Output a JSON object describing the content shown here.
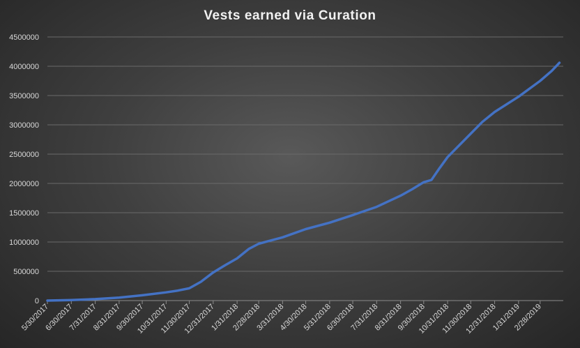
{
  "chart_data": {
    "type": "line",
    "title": "Vests earned via Curation",
    "xlabel": "",
    "ylabel": "",
    "ylim": [
      0,
      4500000
    ],
    "y_ticks": [
      0,
      500000,
      1000000,
      1500000,
      2000000,
      2500000,
      3000000,
      3500000,
      4000000,
      4500000
    ],
    "y_tick_labels": [
      "0",
      "500000",
      "1000000",
      "1500000",
      "2000000",
      "2500000",
      "3000000",
      "3500000",
      "4000000",
      "4500000"
    ],
    "x_tick_labels": [
      "5/30/2017",
      "6/30/2017",
      "7/31/2017",
      "8/31/2017",
      "9/30/2017",
      "10/31/2017",
      "11/30/2017",
      "12/31/2017",
      "1/31/2018",
      "2/28/2018",
      "3/31/2018",
      "4/30/2018",
      "5/31/2018",
      "6/30/2018",
      "7/31/2018",
      "8/31/2018",
      "9/30/2018",
      "10/31/2018",
      "11/30/2018",
      "12/31/2018",
      "1/31/2019",
      "2/28/2019"
    ],
    "grid": true,
    "legend": "none",
    "line_color": "#4472c4",
    "series": [
      {
        "x": [
          "5/30/2017",
          "6/30/2017",
          "7/31/2017",
          "8/31/2017",
          "9/30/2017",
          "10/31/2017",
          "11/15/2017",
          "11/30/2017",
          "12/15/2017",
          "12/31/2017",
          "1/15/2018",
          "1/31/2018",
          "2/15/2018",
          "2/28/2018",
          "3/31/2018",
          "4/30/2018",
          "5/31/2018",
          "6/30/2018",
          "7/31/2018",
          "8/31/2018",
          "9/15/2018",
          "9/30/2018",
          "10/10/2018",
          "10/20/2018",
          "10/31/2018",
          "11/30/2018",
          "12/15/2018",
          "12/31/2018",
          "1/31/2019",
          "2/28/2019",
          "3/15/2019",
          "3/25/2019"
        ],
        "values": [
          0,
          10000,
          25000,
          50000,
          90000,
          140000,
          170000,
          210000,
          320000,
          480000,
          600000,
          720000,
          880000,
          970000,
          1080000,
          1220000,
          1330000,
          1460000,
          1600000,
          1790000,
          1900000,
          2020000,
          2060000,
          2250000,
          2450000,
          2850000,
          3050000,
          3220000,
          3480000,
          3750000,
          3920000,
          4060000
        ]
      }
    ]
  }
}
